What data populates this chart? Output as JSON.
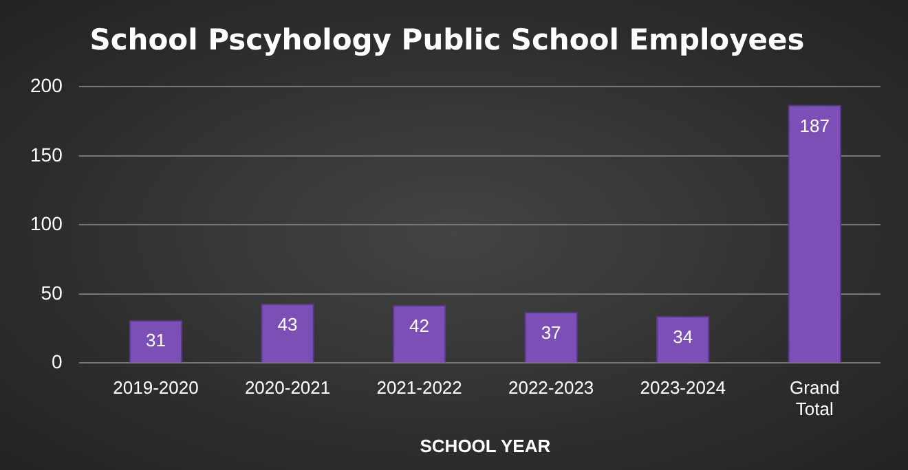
{
  "chart_data": {
    "type": "bar",
    "title": "School Pscyhology Public School Employees",
    "xlabel": "SCHOOL YEAR",
    "categories": [
      "2019-2020",
      "2020-2021",
      "2021-2022",
      "2022-2023",
      "2023-2024",
      "Grand Total"
    ],
    "values": [
      31,
      43,
      42,
      37,
      34,
      187
    ],
    "color": "#7b4fb5",
    "ylim": [
      0,
      200
    ],
    "yticks": [
      0,
      50,
      100,
      150,
      200
    ],
    "grid": "y",
    "legend": false,
    "data_labels": true
  }
}
